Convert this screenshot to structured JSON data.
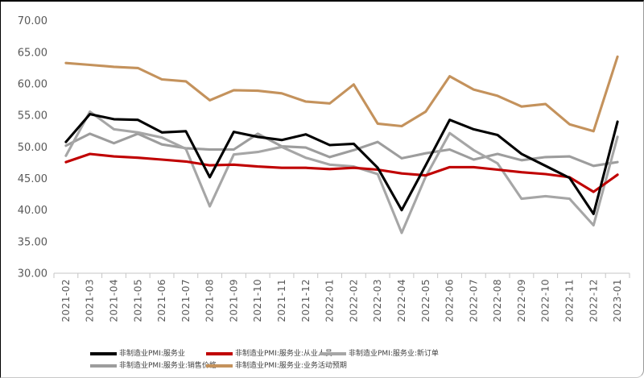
{
  "chart_data": {
    "type": "line",
    "title": "",
    "xlabel": "",
    "ylabel": "",
    "ylim": [
      30,
      70
    ],
    "ytick_step": 5,
    "ytick_decimals": 2,
    "grid": false,
    "legend_position": "bottom",
    "x": [
      "2021-02",
      "2021-03",
      "2021-04",
      "2021-05",
      "2021-06",
      "2021-07",
      "2021-08",
      "2021-09",
      "2021-10",
      "2021-11",
      "2021-12",
      "2022-01",
      "2022-02",
      "2022-03",
      "2022-04",
      "2022-05",
      "2022-06",
      "2022-07",
      "2022-08",
      "2022-09",
      "2022-10",
      "2022-11",
      "2022-12",
      "2023-01"
    ],
    "series": [
      {
        "name": "非制造业PMI:服务业",
        "color": "#000000",
        "values": [
          50.8,
          55.2,
          54.4,
          54.3,
          52.3,
          52.5,
          45.2,
          52.4,
          51.6,
          51.1,
          52.0,
          50.3,
          50.5,
          46.7,
          40.0,
          47.1,
          54.3,
          52.8,
          51.9,
          48.9,
          47.0,
          45.1,
          39.4,
          54.0
        ]
      },
      {
        "name": "非制造业PMI:服务业:从业人员",
        "color": "#c00000",
        "values": [
          47.6,
          48.9,
          48.5,
          48.3,
          48.0,
          47.7,
          47.1,
          47.2,
          46.9,
          46.7,
          46.7,
          46.5,
          46.7,
          46.4,
          45.8,
          45.5,
          46.8,
          46.8,
          46.4,
          46.0,
          45.7,
          45.2,
          42.9,
          45.6
        ]
      },
      {
        "name": "非制造业PMI:服务业:新订单",
        "color": "#a6a6a6",
        "values": [
          48.6,
          55.6,
          52.8,
          52.3,
          51.5,
          49.7,
          40.6,
          48.8,
          49.2,
          50.0,
          48.3,
          47.2,
          46.9,
          45.7,
          36.4,
          45.3,
          52.2,
          49.5,
          47.4,
          41.8,
          42.2,
          41.8,
          37.6,
          51.6
        ]
      },
      {
        "name": "非制造业PMI:服务业:销售价格",
        "color": "#9d9d9d",
        "values": [
          50.2,
          52.1,
          50.6,
          52.1,
          50.4,
          49.8,
          49.6,
          49.6,
          52.1,
          50.1,
          49.9,
          48.4,
          49.5,
          50.8,
          48.2,
          49.0,
          49.6,
          48.0,
          48.9,
          47.9,
          48.4,
          48.5,
          47.0,
          47.6
        ]
      },
      {
        "name": "非制造业PMI:服务业:业务活动预期",
        "color": "#c4925c",
        "values": [
          63.3,
          63.0,
          62.7,
          62.5,
          60.7,
          60.4,
          57.4,
          59.0,
          58.9,
          58.5,
          57.2,
          56.9,
          59.9,
          53.7,
          53.3,
          55.6,
          61.2,
          59.1,
          58.1,
          56.4,
          56.8,
          53.6,
          52.5,
          64.3
        ]
      }
    ],
    "legend_rows": [
      [
        0,
        1,
        2
      ],
      [
        3,
        4
      ]
    ]
  }
}
